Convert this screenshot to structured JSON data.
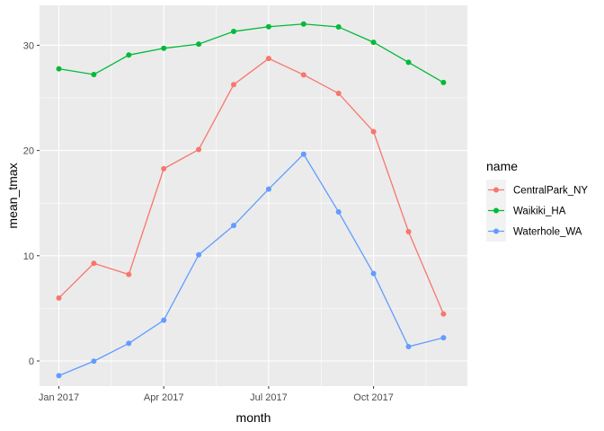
{
  "chart_data": {
    "type": "line",
    "xlabel": "month",
    "ylabel": "mean_tmax",
    "x": [
      "2017-01",
      "2017-02",
      "2017-03",
      "2017-04",
      "2017-05",
      "2017-06",
      "2017-07",
      "2017-08",
      "2017-09",
      "2017-10",
      "2017-11",
      "2017-12"
    ],
    "x_ticks": [
      "Jan 2017",
      "Apr 2017",
      "Jul 2017",
      "Oct 2017"
    ],
    "y_ticks": [
      "0",
      "10",
      "20",
      "30"
    ],
    "ylim": [
      -2.8,
      33.3
    ],
    "grid": true,
    "legend": {
      "title": "name",
      "position": "right"
    },
    "series": [
      {
        "name": "CentralPark_NY",
        "color": "#F8766D",
        "values": [
          5.98,
          9.28,
          8.22,
          18.27,
          20.09,
          26.26,
          28.74,
          27.19,
          25.43,
          21.79,
          12.29,
          4.47
        ]
      },
      {
        "name": "Waikiki_HA",
        "color": "#00BA38",
        "values": [
          27.76,
          27.22,
          29.07,
          29.71,
          30.11,
          31.31,
          31.76,
          32.02,
          31.74,
          30.28,
          28.38,
          26.46
        ]
      },
      {
        "name": "Waterhole_WA",
        "color": "#619CFF",
        "values": [
          -1.4,
          -0.02,
          1.67,
          3.87,
          10.09,
          12.87,
          16.33,
          19.65,
          14.16,
          8.31,
          1.36,
          2.21
        ]
      }
    ]
  }
}
